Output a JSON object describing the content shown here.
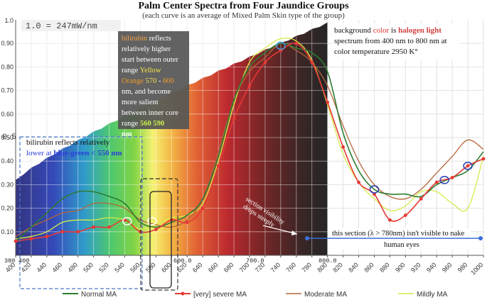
{
  "chart_data": {
    "type": "line",
    "title": "Palm Center Spectra from Four Jaundice Groups",
    "subtitle": "(each curve is an average of Mixed Palm Skin type of the group)",
    "ylim": [
      0,
      1.0
    ],
    "xlim": [
      400,
      1000
    ],
    "x_ticks": [
      400,
      420,
      440,
      460,
      480,
      500,
      520,
      540,
      560,
      580,
      600,
      620,
      640,
      660,
      680,
      700,
      720,
      740,
      760,
      780,
      800,
      820,
      840,
      860,
      880,
      900,
      920,
      940,
      960,
      980,
      1000
    ],
    "x_tick_labels": [
      "400",
      "420",
      "440",
      "460",
      "480",
      "500",
      "520",
      "540",
      "560",
      "580",
      "600",
      "620",
      "640",
      "660",
      "680",
      "700",
      "720",
      "740",
      "760",
      "780",
      "800",
      "820",
      "840",
      "860",
      "880",
      "900",
      "920",
      "940",
      "960",
      "980",
      "1000"
    ],
    "y_ticks": [
      0.1,
      0.2,
      0.3,
      0.4,
      0.5,
      0.6,
      0.7,
      0.8,
      0.9
    ],
    "y_tick_labels": [
      "0.10",
      "0.20",
      "0.30",
      "0.40",
      "0.50",
      "0.60",
      "0.70",
      "0.80",
      "0.90"
    ],
    "y_top_label": "1.0",
    "overlay_axis_labels": {
      "x_380": "380",
      "x_400": "400",
      "x_600": "600.0",
      "x_700": "700.0",
      "x_800": "800.0",
      "y_half": "0.5"
    },
    "scale_label": "1.0 = 247mW/nm",
    "series": [
      {
        "name": "Normal MA",
        "color": "#2e7d32",
        "x": [
          400,
          420,
          440,
          460,
          480,
          500,
          520,
          540,
          560,
          580,
          600,
          620,
          640,
          660,
          680,
          700,
          720,
          740,
          760,
          780,
          800,
          820,
          840,
          860,
          880,
          900,
          920,
          940,
          960,
          980,
          1000
        ],
        "y": [
          0.06,
          0.12,
          0.18,
          0.24,
          0.27,
          0.27,
          0.25,
          0.22,
          0.14,
          0.12,
          0.14,
          0.17,
          0.24,
          0.42,
          0.66,
          0.8,
          0.86,
          0.9,
          0.88,
          0.86,
          0.78,
          0.52,
          0.36,
          0.28,
          0.26,
          0.26,
          0.25,
          0.3,
          0.33,
          0.36,
          0.44
        ]
      },
      {
        "name": "[very] severe MA",
        "color": "#e53935",
        "x": [
          400,
          420,
          440,
          460,
          480,
          500,
          520,
          540,
          560,
          580,
          600,
          620,
          640,
          660,
          680,
          700,
          720,
          740,
          760,
          780,
          800,
          820,
          840,
          860,
          880,
          900,
          920,
          940,
          960,
          980,
          1000
        ],
        "y": [
          0.06,
          0.07,
          0.08,
          0.1,
          0.1,
          0.12,
          0.12,
          0.15,
          0.1,
          0.11,
          0.15,
          0.14,
          0.2,
          0.38,
          0.58,
          0.72,
          0.82,
          0.87,
          0.9,
          0.82,
          0.65,
          0.46,
          0.31,
          0.26,
          0.15,
          0.17,
          0.24,
          0.31,
          0.33,
          0.38,
          0.41
        ]
      },
      {
        "name": "Moderate MA",
        "color": "#b5653a",
        "x": [
          400,
          420,
          440,
          460,
          480,
          500,
          520,
          540,
          560,
          580,
          600,
          620,
          640,
          660,
          680,
          700,
          720,
          740,
          760,
          780,
          800,
          820,
          840,
          860,
          880,
          900,
          920,
          940,
          960,
          980,
          1000
        ],
        "y": [
          0.08,
          0.12,
          0.15,
          0.18,
          0.19,
          0.22,
          0.22,
          0.2,
          0.15,
          0.13,
          0.12,
          0.15,
          0.24,
          0.44,
          0.66,
          0.78,
          0.84,
          0.9,
          0.87,
          0.82,
          0.72,
          0.55,
          0.4,
          0.3,
          0.25,
          0.24,
          0.28,
          0.35,
          0.42,
          0.49,
          0.45
        ]
      },
      {
        "name": "Mildly MA",
        "color": "#d7ea4a",
        "x": [
          400,
          420,
          440,
          460,
          480,
          500,
          520,
          540,
          560,
          580,
          600,
          620,
          640,
          660,
          680,
          700,
          720,
          740,
          760,
          780,
          800,
          820,
          840,
          860,
          880,
          900,
          920,
          940,
          960,
          980,
          1000
        ],
        "y": [
          0.07,
          0.08,
          0.1,
          0.14,
          0.15,
          0.15,
          0.16,
          0.15,
          0.11,
          0.13,
          0.16,
          0.17,
          0.22,
          0.4,
          0.64,
          0.82,
          0.88,
          0.92,
          0.91,
          0.83,
          0.64,
          0.43,
          0.31,
          0.24,
          0.19,
          0.21,
          0.27,
          0.27,
          0.22,
          0.2,
          0.42
        ]
      }
    ],
    "annotations": {
      "bilirubin_top": {
        "word": "bilirubin",
        "line1": " reflects",
        "line2": "relatively higher",
        "line3": "start between outer",
        "line4": "range ",
        "yellow": "Yellow",
        "orange": "Orange",
        "r1": "570",
        "dash": " - ",
        "r2": "600",
        "line6": "nm, and become",
        "line7": "more salient",
        "line8": "between inner core",
        "line9": "range ",
        "c1": "560",
        "c2": "590",
        "nm": "nm"
      },
      "blue_green": {
        "line1": "bilirubin reflects relatively",
        "lower_at": "lower at ",
        "bold": "blue-green < 550 nm"
      },
      "background": {
        "pre": "background ",
        "color": "color",
        "is": " is ",
        "halogen": "halogen light",
        "line2": "spectrum from 400 nm to 800 nm at",
        "line3": "color temperature 2950 K°"
      },
      "section": {
        "line1": "section visibility",
        "line2": "drops steeply"
      },
      "nir": {
        "line1": "this section (λ > 780nm) isn't visible to nake",
        "line2": "human eyes"
      }
    }
  }
}
